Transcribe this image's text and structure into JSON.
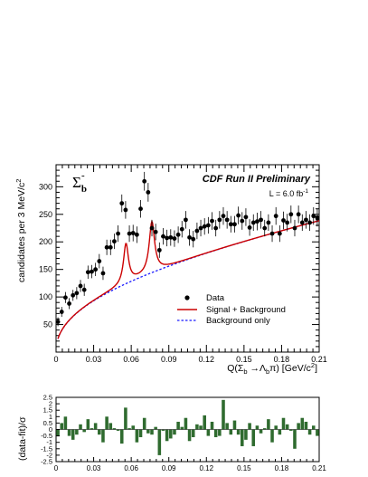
{
  "chart_data": [
    {
      "type": "scatter",
      "title": "CDF Run II Preliminary",
      "luminosity": "L = 6.0 fb",
      "luminosity_unit_exp": "-1",
      "particle_label": "Σ",
      "particle_sub": "b",
      "particle_sup": "-",
      "xlabel": "Q(Σb→Λbπ) [GeV/c²]",
      "xlabel_parts": {
        "pre": "Q(Σ",
        "sub1": "b",
        "mid": " →Λ",
        "sub2": "b",
        "post": "π) [GeV/c",
        "sup": "2",
        "end": "]"
      },
      "ylabel": "candidates per 3 MeV/c²",
      "ylabel_parts": {
        "main": "candidates per 3 MeV/c",
        "sup": "2"
      },
      "xlim": [
        0,
        0.21
      ],
      "ylim": [
        0,
        340
      ],
      "x_ticks": [
        "0",
        "0.03",
        "0.06",
        "0.09",
        "0.12",
        "0.15",
        "0.18",
        "0.21"
      ],
      "y_ticks": [
        "50",
        "100",
        "150",
        "200",
        "250",
        "300"
      ],
      "legend": {
        "position": "lower-center",
        "data_label": "Data",
        "fit_label": "Signal + Background",
        "bg_label": "Background only"
      },
      "series": [
        {
          "name": "Data",
          "x": [
            0.0015,
            0.0045,
            0.0075,
            0.0105,
            0.0135,
            0.0165,
            0.0195,
            0.0225,
            0.0255,
            0.0285,
            0.0315,
            0.0345,
            0.0375,
            0.0405,
            0.0435,
            0.0465,
            0.0495,
            0.0525,
            0.0555,
            0.0585,
            0.0615,
            0.0645,
            0.0675,
            0.0705,
            0.0735,
            0.0765,
            0.0795,
            0.0825,
            0.0855,
            0.0885,
            0.0915,
            0.0945,
            0.0975,
            0.1005,
            0.1035,
            0.1065,
            0.1095,
            0.1125,
            0.1155,
            0.1185,
            0.1215,
            0.1245,
            0.1275,
            0.1305,
            0.1335,
            0.1365,
            0.1395,
            0.1425,
            0.1455,
            0.1485,
            0.1515,
            0.1545,
            0.1575,
            0.1605,
            0.1635,
            0.1665,
            0.1695,
            0.1725,
            0.1755,
            0.1785,
            0.1815,
            0.1845,
            0.1875,
            0.1905,
            0.1935,
            0.1965,
            0.1995,
            0.2025,
            0.2055,
            0.2085
          ],
          "y": [
            55,
            73,
            99,
            88,
            103,
            107,
            120,
            113,
            145,
            146,
            150,
            165,
            143,
            190,
            190,
            201,
            215,
            270,
            258,
            215,
            216,
            213,
            260,
            310,
            290,
            225,
            218,
            185,
            210,
            207,
            208,
            206,
            213,
            223,
            240,
            208,
            205,
            220,
            225,
            228,
            230,
            238,
            225,
            240,
            247,
            240,
            232,
            232,
            248,
            238,
            245,
            226,
            235,
            237,
            240,
            225,
            235,
            215,
            247,
            215,
            239,
            235,
            250,
            225,
            250,
            235,
            240,
            235,
            247,
            244
          ],
          "err": [
            8,
            9,
            10,
            10,
            10,
            11,
            11,
            11,
            12,
            12,
            12,
            13,
            12,
            14,
            14,
            14,
            15,
            16,
            16,
            15,
            15,
            15,
            16,
            17,
            17,
            15,
            15,
            14,
            15,
            15,
            15,
            15,
            15,
            15,
            16,
            15,
            15,
            15,
            15,
            15,
            15,
            16,
            15,
            16,
            16,
            16,
            15,
            15,
            16,
            16,
            16,
            15,
            15,
            16,
            16,
            15,
            15,
            15,
            16,
            15,
            16,
            16,
            16,
            15,
            16,
            15,
            16,
            15,
            16,
            16
          ]
        },
        {
          "name": "Signal + Background",
          "color": "#cc0000",
          "function": "background + peaks",
          "peaks": [
            {
              "mean": 0.0558,
              "width": 0.0024,
              "amp": 72
            },
            {
              "mean": 0.0765,
              "width": 0.0026,
              "amp": 92
            }
          ]
        },
        {
          "name": "Background only",
          "color": "#1a1aff",
          "function": "background",
          "params": {
            "onset": 0.0,
            "scale": 205,
            "power": 0.42,
            "slope": 160
          }
        }
      ]
    },
    {
      "type": "bar",
      "ylabel": "(data-fit)/σ",
      "xlim": [
        0,
        0.21
      ],
      "ylim": [
        -2.5,
        2.5
      ],
      "x_ticks": [
        "0",
        "0.03",
        "0.06",
        "0.09",
        "0.12",
        "0.15",
        "0.18",
        "0.21"
      ],
      "y_ticks": [
        "2.5",
        "2",
        "1.5",
        "1",
        "0.5",
        "0",
        "-0.5",
        "-1",
        "-1.5",
        "-2",
        "-2.5"
      ],
      "color": "#2f6b2f",
      "values": [
        -0.5,
        0.5,
        1.0,
        -0.5,
        -0.8,
        -0.4,
        0.4,
        -0.2,
        0.8,
        0.1,
        0.5,
        -0.4,
        -1.0,
        1.0,
        0.5,
        0.1,
        -0.1,
        -1.1,
        1.7,
        0.1,
        0.3,
        -1.0,
        -0.6,
        0.9,
        -0.3,
        -0.4,
        0.2,
        -2.0,
        -0.1,
        -0.9,
        -0.7,
        -0.4,
        0.6,
        0.2,
        0.9,
        -0.9,
        -0.6,
        0.4,
        0.3,
        1.1,
        -0.5,
        0.6,
        -0.6,
        -0.5,
        2.3,
        0.5,
        -0.4,
        0.7,
        -0.4,
        -1.3,
        -0.8,
        0.5,
        -1.3,
        0.3,
        -0.3,
        0.1,
        0.8,
        -1.0,
        0.3,
        -0.4,
        0.9,
        0.4,
        -0.1,
        -1.5,
        0.5,
        0.9,
        0.6,
        -0.4,
        0.3,
        -0.5
      ]
    }
  ]
}
